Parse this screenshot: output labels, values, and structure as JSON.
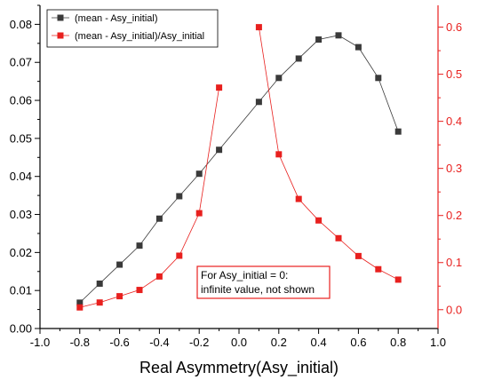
{
  "chart_data": {
    "type": "scatter",
    "xlabel": "Real Asymmetry(Asy_initial)",
    "ylabel_left": "",
    "ylabel_right": "",
    "xlim": [
      -1.0,
      1.0
    ],
    "ylim_left": [
      0.0,
      0.085
    ],
    "ylim_right": [
      -0.04,
      0.6463
    ],
    "x_ticks": [
      "-1.0",
      "-0.8",
      "-0.6",
      "-0.4",
      "-0.2",
      "0.0",
      "0.2",
      "0.4",
      "0.6",
      "0.8",
      "1.0"
    ],
    "y_left_ticks": [
      "0.00",
      "0.01",
      "0.02",
      "0.03",
      "0.04",
      "0.05",
      "0.06",
      "0.07",
      "0.08"
    ],
    "y_right_ticks": [
      "0.0",
      "0.1",
      "0.2",
      "0.3",
      "0.4",
      "0.5",
      "0.6"
    ],
    "grid": false,
    "legend_position": "top-left",
    "series": [
      {
        "name": "(mean - Asy_initial)",
        "axis": "left",
        "color": "#3a3a3a",
        "marker": "square",
        "connect": "all",
        "x": [
          -0.8,
          -0.7,
          -0.6,
          -0.5,
          -0.4,
          -0.3,
          -0.2,
          -0.1,
          0.1,
          0.2,
          0.3,
          0.4,
          0.5,
          0.6,
          0.7,
          0.8
        ],
        "y": [
          0.0068,
          0.0118,
          0.0168,
          0.0218,
          0.0289,
          0.0348,
          0.0407,
          0.047,
          0.0596,
          0.0659,
          0.071,
          0.076,
          0.0771,
          0.074,
          0.0659,
          0.0518
        ]
      },
      {
        "name": "(mean - Asy_initial)/Asy_initial",
        "axis": "right",
        "color": "#e8201e",
        "marker": "square",
        "connect": "segments",
        "segments": [
          [
            0,
            7
          ],
          [
            8,
            15
          ]
        ],
        "x": [
          -0.8,
          -0.7,
          -0.6,
          -0.5,
          -0.4,
          -0.3,
          -0.2,
          -0.1,
          0.1,
          0.2,
          0.3,
          0.4,
          0.5,
          0.6,
          0.7,
          0.8
        ],
        "y": [
          0.0048,
          0.0152,
          0.0286,
          0.0419,
          0.0705,
          0.1146,
          0.2049,
          0.4716,
          0.5999,
          0.3299,
          0.2351,
          0.1895,
          0.1518,
          0.1139,
          0.0859,
          0.0638
        ]
      }
    ],
    "annotation": {
      "line1": "For Asy_initial = 0:",
      "line2": "infinite value, not shown",
      "border_color": "#e8201e"
    }
  }
}
